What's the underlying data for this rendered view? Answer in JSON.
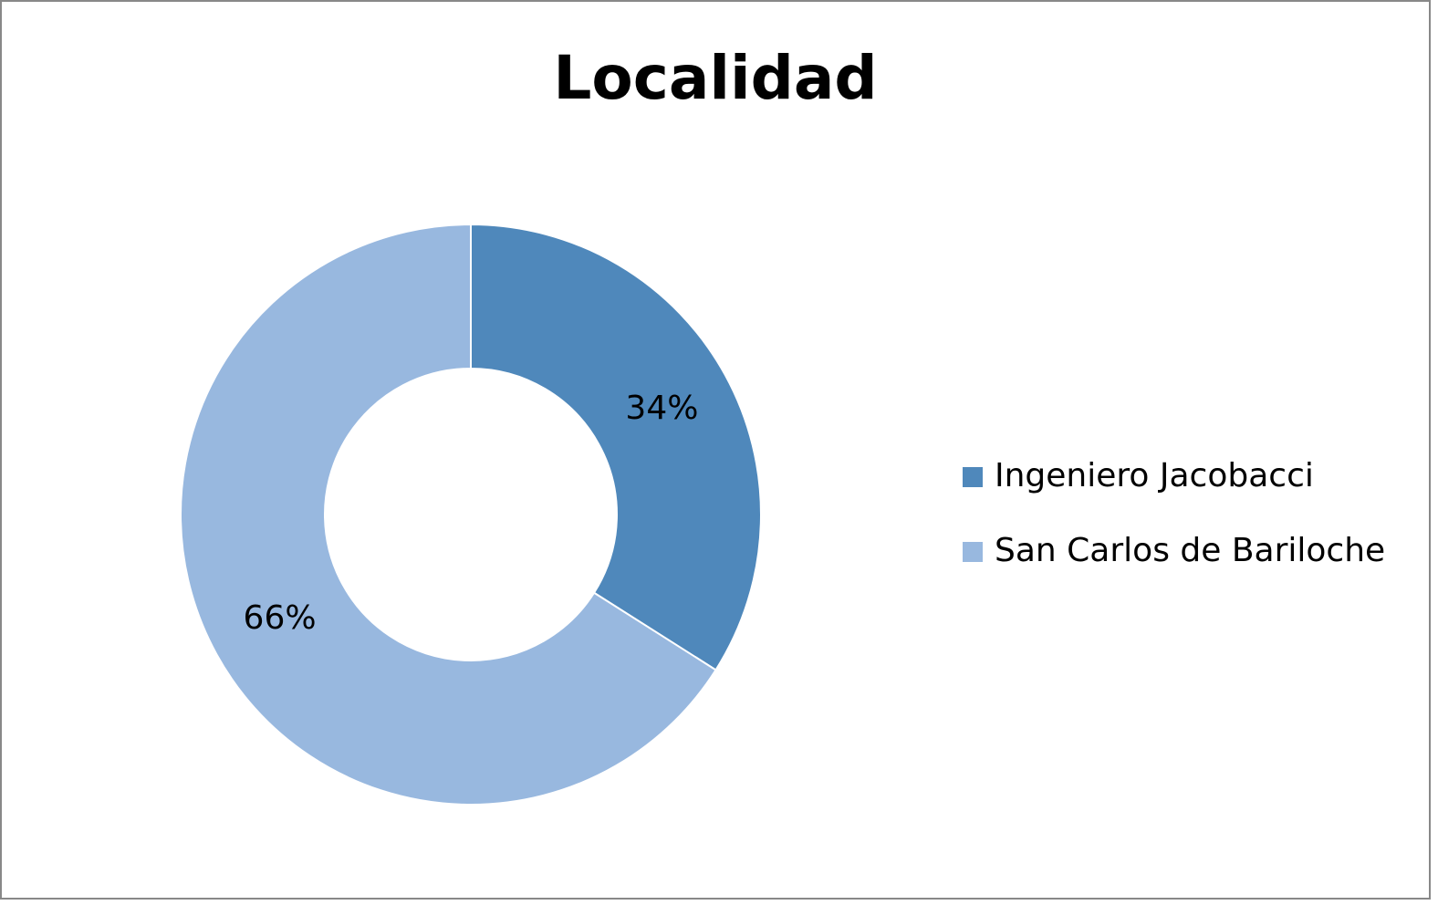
{
  "chart_data": {
    "type": "donut",
    "title": "Localidad",
    "categories": [
      "Ingeniero Jacobacci",
      "San Carlos de Bariloche"
    ],
    "values": [
      34,
      66
    ],
    "value_labels": [
      "34%",
      "66%"
    ],
    "colors": [
      "#4f88bb",
      "#98b8df"
    ],
    "legend": "right"
  }
}
